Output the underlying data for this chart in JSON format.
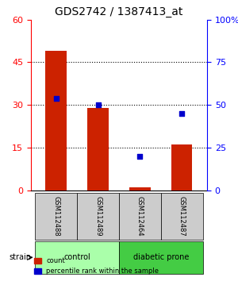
{
  "title": "GDS2742 / 1387413_at",
  "samples": [
    "GSM112488",
    "GSM112489",
    "GSM112464",
    "GSM112487"
  ],
  "counts": [
    49,
    29,
    1,
    16
  ],
  "percentiles": [
    54,
    50,
    20,
    45
  ],
  "bar_color": "#cc2200",
  "dot_color": "#0000cc",
  "left_ylim": [
    0,
    60
  ],
  "right_ylim": [
    0,
    100
  ],
  "left_yticks": [
    0,
    15,
    30,
    45,
    60
  ],
  "right_yticks": [
    0,
    25,
    50,
    75,
    100
  ],
  "right_yticklabels": [
    "0",
    "25",
    "50",
    "75",
    "100%"
  ],
  "groups": [
    {
      "label": "control",
      "samples": [
        0,
        1
      ],
      "color": "#aaffaa"
    },
    {
      "label": "diabetic prone",
      "samples": [
        2,
        3
      ],
      "color": "#44cc44"
    }
  ],
  "legend_count_label": "count",
  "legend_pct_label": "percentile rank within the sample",
  "strain_label": "strain",
  "background_color": "#ffffff",
  "plot_bg_color": "#ffffff",
  "grid_color": "#000000",
  "label_area_color": "#cccccc",
  "group_bar_height": 0.06
}
